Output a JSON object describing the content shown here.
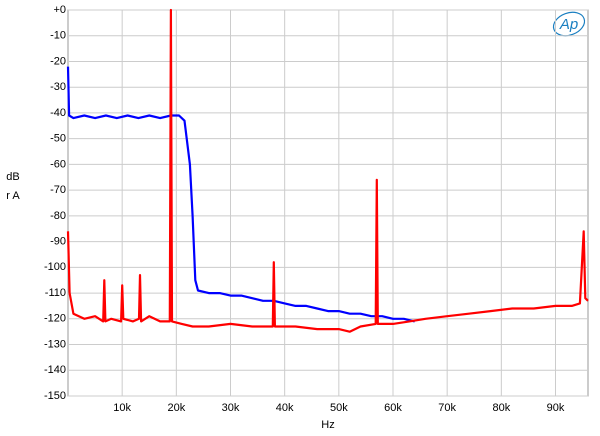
{
  "chart_data": {
    "type": "line",
    "logo": "Ap",
    "xlabel": "Hz",
    "ylabel": "dBr A",
    "xlim": [
      0,
      96000
    ],
    "ylim": [
      -150,
      0
    ],
    "xticks": [
      {
        "value": 10000,
        "label": "10k"
      },
      {
        "value": 20000,
        "label": "20k"
      },
      {
        "value": 30000,
        "label": "30k"
      },
      {
        "value": 40000,
        "label": "40k"
      },
      {
        "value": 50000,
        "label": "50k"
      },
      {
        "value": 60000,
        "label": "60k"
      },
      {
        "value": 70000,
        "label": "70k"
      },
      {
        "value": 80000,
        "label": "80k"
      },
      {
        "value": 90000,
        "label": "90k"
      }
    ],
    "yticks": [
      {
        "value": 0,
        "label": "+0"
      },
      -10,
      -20,
      -30,
      -40,
      -50,
      -60,
      -70,
      -80,
      -90,
      -100,
      -110,
      -120,
      -130,
      -140,
      -150
    ],
    "grid": true,
    "series": [
      {
        "color": "#0000ff",
        "x": [
          0,
          200,
          1000,
          3000,
          5000,
          7000,
          9000,
          11000,
          13000,
          15000,
          17000,
          19000,
          20500,
          21500,
          22500,
          23000,
          23500,
          24000,
          26000,
          28000,
          30000,
          32000,
          34000,
          36000,
          38000,
          40000,
          42000,
          44000,
          46000,
          48000,
          50000,
          52000,
          54000,
          56000,
          58000,
          60000,
          62000,
          64000
        ],
        "values": [
          -22,
          -41,
          -42,
          -41,
          -42,
          -41,
          -42,
          -41,
          -42,
          -41,
          -42,
          -41,
          -41,
          -43,
          -60,
          -80,
          -105,
          -109,
          -110,
          -110,
          -111,
          -111,
          -112,
          -113,
          -113,
          -114,
          -115,
          -115,
          -116,
          -117,
          -117,
          -118,
          -118,
          -119,
          -119,
          -120,
          -120,
          -121
        ]
      },
      {
        "color": "#ff0000",
        "x": [
          0,
          300,
          1000,
          3000,
          5000,
          6500,
          6700,
          6900,
          8000,
          9800,
          10000,
          10200,
          12000,
          13100,
          13300,
          13500,
          15000,
          17000,
          18800,
          19000,
          19200,
          21000,
          23000,
          26000,
          30000,
          34000,
          37800,
          38000,
          38200,
          42000,
          46000,
          50000,
          52000,
          54000,
          56800,
          57000,
          57200,
          60000,
          63000,
          66000,
          70000,
          74000,
          78000,
          82000,
          86000,
          90000,
          93000,
          94500,
          95200,
          95500,
          96000
        ],
        "values": [
          -86,
          -110,
          -118,
          -120,
          -119,
          -121,
          -105,
          -121,
          -120,
          -121,
          -107,
          -120,
          -121,
          -120,
          -103,
          -121,
          -119,
          -121,
          -121,
          0,
          -121,
          -122,
          -123,
          -123,
          -122,
          -123,
          -123,
          -98,
          -123,
          -123,
          -124,
          -124,
          -125,
          -123,
          -122,
          -66,
          -122,
          -122,
          -121,
          -120,
          -119,
          -118,
          -117,
          -116,
          -116,
          -115,
          -115,
          -114,
          -86,
          -112,
          -113
        ]
      }
    ]
  }
}
